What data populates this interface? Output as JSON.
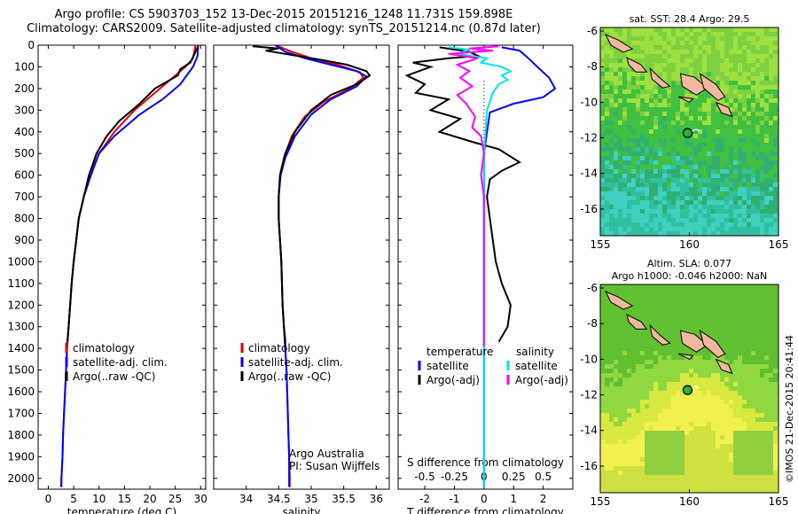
{
  "titles": {
    "line1": "Argo profile: CS 5903703_152 13-Dec-2015 20151216_1248 11.731S 159.898E",
    "line2": "Climatology: CARS2009. Satellite-adjusted climatology: synTS_20151214.nc (0.87d later)"
  },
  "colors": {
    "climatology": "#e00000",
    "satellite": "#0000ff",
    "argo": "#000000",
    "sat_salinity": "#00e5e5",
    "argo_salinity": "#ff00ff",
    "land": "#f0b8a0"
  },
  "chart_data": [
    {
      "id": "temperature",
      "type": "line",
      "xlabel": "temperature (deg C)",
      "xlim": [
        -2,
        31
      ],
      "xticks": [
        0,
        5,
        10,
        15,
        20,
        25,
        30
      ],
      "ylim": [
        0,
        2050
      ],
      "yticks": [
        0,
        100,
        200,
        300,
        400,
        500,
        600,
        700,
        800,
        900,
        1000,
        1100,
        1200,
        1300,
        1400,
        1500,
        1600,
        1700,
        1800,
        1900,
        2000
      ],
      "legend": {
        "position": "lower-center",
        "entries": [
          "climatology",
          "satellite-adj. clim.",
          "Argo(..raw -QC)"
        ]
      },
      "series": [
        {
          "name": "climatology",
          "color": "#e00000",
          "points": [
            [
              29,
              0
            ],
            [
              28.5,
              60
            ],
            [
              27,
              100
            ],
            [
              24,
              160
            ],
            [
              21,
              220
            ],
            [
              17,
              300
            ],
            [
              13,
              400
            ],
            [
              10,
              500
            ],
            [
              8.2,
              600
            ],
            [
              7,
              700
            ],
            [
              6,
              800
            ],
            [
              5.5,
              900
            ],
            [
              5,
              1000
            ],
            [
              4.6,
              1100
            ],
            [
              4.3,
              1200
            ],
            [
              4,
              1300
            ],
            [
              3.7,
              1400
            ],
            [
              3.5,
              1500
            ],
            [
              3.3,
              1600
            ],
            [
              3.1,
              1700
            ],
            [
              2.9,
              1800
            ],
            [
              2.8,
              1900
            ],
            [
              2.6,
              2000
            ],
            [
              2.5,
              2040
            ]
          ]
        },
        {
          "name": "satellite-adj. clim.",
          "color": "#0000ff",
          "points": [
            [
              29.5,
              0
            ],
            [
              29.4,
              50
            ],
            [
              28.5,
              100
            ],
            [
              26,
              180
            ],
            [
              22.5,
              250
            ],
            [
              18,
              320
            ],
            [
              13,
              420
            ],
            [
              10,
              500
            ],
            [
              8.4,
              600
            ],
            [
              7,
              700
            ],
            [
              6,
              800
            ],
            [
              5.5,
              900
            ],
            [
              5,
              1000
            ],
            [
              4.6,
              1100
            ],
            [
              4.3,
              1200
            ],
            [
              4,
              1300
            ],
            [
              3.7,
              1400
            ],
            [
              3.5,
              1500
            ],
            [
              3.3,
              1600
            ],
            [
              3.1,
              1700
            ],
            [
              2.9,
              1800
            ],
            [
              2.8,
              1900
            ],
            [
              2.6,
              2000
            ],
            [
              2.6,
              2040
            ]
          ]
        },
        {
          "name": "Argo(..raw -QC)",
          "color": "#000000",
          "points": [
            [
              29.5,
              5
            ],
            [
              28.8,
              40
            ],
            [
              28,
              80
            ],
            [
              26,
              110
            ],
            [
              25.5,
              140
            ],
            [
              21,
              200
            ],
            [
              18,
              270
            ],
            [
              14,
              350
            ],
            [
              11.5,
              420
            ],
            [
              9.5,
              500
            ],
            [
              8,
              600
            ],
            [
              7,
              700
            ],
            [
              6,
              800
            ],
            [
              5.5,
              900
            ],
            [
              5,
              1000
            ],
            [
              4.6,
              1100
            ],
            [
              4.3,
              1200
            ],
            [
              4,
              1300
            ],
            [
              3.8,
              1360
            ],
            [
              3.6,
              1400
            ]
          ]
        }
      ]
    },
    {
      "id": "salinity",
      "type": "line",
      "xlabel": "salinity",
      "xlim": [
        33.5,
        36.2
      ],
      "xticks": [
        34,
        34.5,
        35,
        35.5,
        36
      ],
      "ylim": [
        0,
        2050
      ],
      "legend": {
        "position": "lower-center",
        "entries": [
          "climatology",
          "satellite-adj. clim.",
          "Argo(..raw -QC)"
        ]
      },
      "annotation": [
        "Argo Australia",
        "PI: Susan Wijffels"
      ],
      "series": [
        {
          "name": "climatology",
          "color": "#e00000",
          "points": [
            [
              34.45,
              0
            ],
            [
              34.7,
              30
            ],
            [
              35.0,
              60
            ],
            [
              35.4,
              90
            ],
            [
              35.75,
              125
            ],
            [
              35.8,
              150
            ],
            [
              35.6,
              200
            ],
            [
              35.2,
              260
            ],
            [
              34.9,
              330
            ],
            [
              34.7,
              420
            ],
            [
              34.58,
              520
            ],
            [
              34.52,
              600
            ],
            [
              34.5,
              700
            ],
            [
              34.5,
              800
            ],
            [
              34.52,
              900
            ],
            [
              34.54,
              1000
            ],
            [
              34.55,
              1100
            ],
            [
              34.56,
              1200
            ],
            [
              34.58,
              1300
            ],
            [
              34.6,
              1400
            ],
            [
              34.62,
              1500
            ],
            [
              34.63,
              1600
            ],
            [
              34.64,
              1700
            ],
            [
              34.65,
              1800
            ],
            [
              34.66,
              1900
            ],
            [
              34.67,
              2000
            ],
            [
              34.67,
              2040
            ]
          ]
        },
        {
          "name": "satellite-adj. clim.",
          "color": "#0000ff",
          "points": [
            [
              34.45,
              0
            ],
            [
              34.6,
              30
            ],
            [
              34.9,
              60
            ],
            [
              35.3,
              90
            ],
            [
              35.7,
              120
            ],
            [
              35.85,
              145
            ],
            [
              35.7,
              190
            ],
            [
              35.3,
              250
            ],
            [
              35.0,
              320
            ],
            [
              34.75,
              420
            ],
            [
              34.6,
              520
            ],
            [
              34.53,
              600
            ],
            [
              34.5,
              700
            ],
            [
              34.5,
              800
            ],
            [
              34.52,
              900
            ],
            [
              34.54,
              1000
            ],
            [
              34.55,
              1100
            ],
            [
              34.56,
              1200
            ],
            [
              34.58,
              1300
            ],
            [
              34.6,
              1400
            ],
            [
              34.62,
              1500
            ],
            [
              34.63,
              1600
            ],
            [
              34.64,
              1700
            ],
            [
              34.65,
              1800
            ],
            [
              34.66,
              1900
            ],
            [
              34.66,
              2000
            ],
            [
              34.66,
              2040
            ]
          ]
        },
        {
          "name": "Argo(..raw -QC)",
          "color": "#000000",
          "points": [
            [
              34.1,
              5
            ],
            [
              34.5,
              15
            ],
            [
              34.3,
              25
            ],
            [
              34.6,
              40
            ],
            [
              35.2,
              70
            ],
            [
              35.55,
              90
            ],
            [
              35.85,
              120
            ],
            [
              35.9,
              140
            ],
            [
              35.7,
              180
            ],
            [
              35.3,
              230
            ],
            [
              35.0,
              300
            ],
            [
              34.75,
              400
            ],
            [
              34.6,
              500
            ],
            [
              34.52,
              600
            ],
            [
              34.5,
              700
            ],
            [
              34.5,
              800
            ],
            [
              34.52,
              900
            ],
            [
              34.54,
              1000
            ],
            [
              34.55,
              1100
            ],
            [
              34.56,
              1200
            ],
            [
              34.58,
              1300
            ],
            [
              34.6,
              1360
            ],
            [
              34.6,
              1390
            ]
          ]
        }
      ]
    },
    {
      "id": "difference",
      "type": "line",
      "xlabel": "T difference from climatology",
      "xlabel_top": "S difference from climatology",
      "xlim": [
        -2.9,
        3.0
      ],
      "xticks": [
        -2,
        -1,
        0,
        1,
        2
      ],
      "xticks_top": [
        {
          "value": -2,
          "label": "-0.5"
        },
        {
          "value": -1,
          "label": "-0.25"
        },
        {
          "value": 0,
          "label": "0"
        },
        {
          "value": 1,
          "label": "0.25"
        },
        {
          "value": 2,
          "label": "0.5"
        }
      ],
      "ylim": [
        0,
        2050
      ],
      "legend": {
        "position": "lower-center",
        "headers": [
          "temperature",
          "salinity"
        ],
        "entries": [
          "satellite",
          "Argo(-adj)",
          "satellite",
          "Argo(-adj)"
        ]
      },
      "series": [
        {
          "name": "temperature satellite",
          "color": "#0000ff",
          "points": [
            [
              0.6,
              10
            ],
            [
              1.2,
              25
            ],
            [
              1.5,
              60
            ],
            [
              1.8,
              100
            ],
            [
              2.2,
              150
            ],
            [
              2.4,
              200
            ],
            [
              2.0,
              240
            ],
            [
              1.0,
              270
            ],
            [
              0.2,
              310
            ],
            [
              0.1,
              400
            ],
            [
              0,
              500
            ],
            [
              0,
              700
            ],
            [
              0,
              1000
            ],
            [
              0,
              1500
            ],
            [
              0,
              2040
            ]
          ]
        },
        {
          "name": "temperature Argo(-adj)",
          "color": "#000000",
          "points": [
            [
              -1.5,
              10
            ],
            [
              -0.5,
              30
            ],
            [
              -0.2,
              50
            ],
            [
              -1.2,
              60
            ],
            [
              -2.4,
              80
            ],
            [
              -1.8,
              100
            ],
            [
              -2.6,
              140
            ],
            [
              -2.0,
              180
            ],
            [
              -2.3,
              220
            ],
            [
              -1.2,
              250
            ],
            [
              -1.8,
              300
            ],
            [
              -0.8,
              340
            ],
            [
              -1.5,
              400
            ],
            [
              -0.3,
              450
            ],
            [
              0.5,
              480
            ],
            [
              1.2,
              540
            ],
            [
              0.6,
              580
            ],
            [
              0.2,
              620
            ],
            [
              0.1,
              700
            ],
            [
              0.2,
              800
            ],
            [
              0.3,
              900
            ],
            [
              0.4,
              1000
            ],
            [
              0.6,
              1100
            ],
            [
              0.9,
              1200
            ],
            [
              0.8,
              1300
            ],
            [
              0.5,
              1370
            ]
          ]
        },
        {
          "name": "salinity satellite",
          "color": "#00e5e5",
          "points": [
            [
              -1.2,
              10
            ],
            [
              -0.5,
              20
            ],
            [
              -0.9,
              40
            ],
            [
              0.1,
              60
            ],
            [
              -0.1,
              80
            ],
            [
              0.6,
              100
            ],
            [
              0.9,
              120
            ],
            [
              0.6,
              140
            ],
            [
              0.8,
              160
            ],
            [
              0.5,
              180
            ],
            [
              0.3,
              220
            ],
            [
              0.2,
              260
            ],
            [
              0.1,
              300
            ],
            [
              0.0,
              500
            ],
            [
              0,
              2040
            ]
          ]
        },
        {
          "name": "salinity Argo(-adj)",
          "color": "#ff00ff",
          "points": [
            [
              0.5,
              5
            ],
            [
              -0.5,
              15
            ],
            [
              0.3,
              25
            ],
            [
              -1.2,
              40
            ],
            [
              -0.2,
              60
            ],
            [
              -0.9,
              90
            ],
            [
              -0.5,
              120
            ],
            [
              -0.8,
              150
            ],
            [
              -0.4,
              190
            ],
            [
              -0.9,
              230
            ],
            [
              -0.6,
              270
            ],
            [
              -0.3,
              330
            ],
            [
              -0.4,
              380
            ],
            [
              -0.1,
              420
            ],
            [
              0.0,
              500
            ],
            [
              -0.1,
              600
            ],
            [
              0,
              700
            ],
            [
              0,
              1000
            ],
            [
              0,
              1390
            ]
          ]
        }
      ]
    },
    {
      "id": "sst_map",
      "type": "heatmap",
      "title": "sat. SST: 28.4 Argo: 29.5",
      "xlim": [
        155,
        165
      ],
      "ylim": [
        -17.5,
        -5.8
      ],
      "xticks": [
        155,
        160,
        165
      ],
      "yticks": [
        -6,
        -8,
        -10,
        -12,
        -14,
        -16
      ],
      "marker": {
        "lon": 159.898,
        "lat": -11.731
      }
    },
    {
      "id": "sla_map",
      "type": "heatmap",
      "title": [
        "Altim. SLA: 0.077",
        "Argo h1000: -0.046 h2000: NaN"
      ],
      "xlim": [
        155,
        165
      ],
      "ylim": [
        -17.5,
        -5.8
      ],
      "xticks": [
        155,
        160,
        165
      ],
      "yticks": [
        -6,
        -8,
        -10,
        -12,
        -14,
        -16
      ],
      "marker": {
        "lon": 159.898,
        "lat": -11.731
      }
    }
  ],
  "footer": {
    "stamp": "©IMOS 21-Dec-2015 20:41:44"
  }
}
